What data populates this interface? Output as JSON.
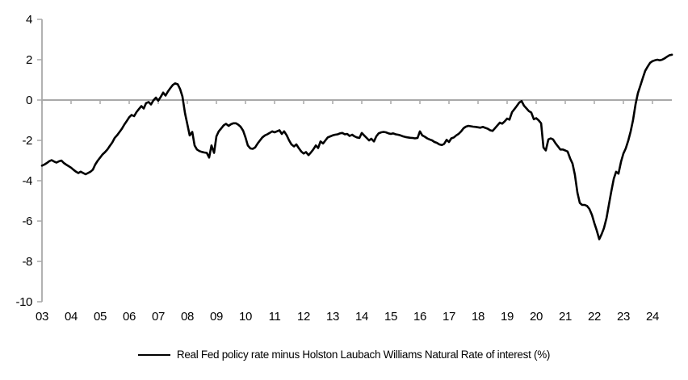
{
  "chart_data": {
    "type": "line",
    "title": "",
    "legend": "Real Fed policy rate minus Holston Laubach Williams Natural Rate of interest (%)",
    "xlabel": "",
    "ylabel": "",
    "grid": false,
    "legend_position": "bottom",
    "axis_color": "#a9a9a9",
    "line_color": "#000000",
    "ylim": [
      -10,
      4
    ],
    "y_ticks": [
      4,
      2,
      0,
      -2,
      -4,
      -6,
      -8,
      -10
    ],
    "x_tick_labels": [
      "03",
      "04",
      "05",
      "06",
      "07",
      "08",
      "09",
      "10",
      "11",
      "12",
      "13",
      "14",
      "15",
      "16",
      "17",
      "18",
      "19",
      "20",
      "21",
      "22",
      "23",
      "24"
    ],
    "xlim_years": [
      2003.0,
      2024.75
    ],
    "zero_line": true,
    "series": [
      {
        "name": "Real Fed policy rate minus Holston Laubach Williams Natural Rate of interest (%)",
        "color": "#000000",
        "points": [
          [
            2003.0,
            -3.25
          ],
          [
            2003.08,
            -3.2
          ],
          [
            2003.17,
            -3.12
          ],
          [
            2003.25,
            -3.03
          ],
          [
            2003.33,
            -2.98
          ],
          [
            2003.42,
            -3.05
          ],
          [
            2003.5,
            -3.1
          ],
          [
            2003.58,
            -3.04
          ],
          [
            2003.67,
            -3.0
          ],
          [
            2003.75,
            -3.12
          ],
          [
            2003.83,
            -3.2
          ],
          [
            2003.92,
            -3.28
          ],
          [
            2004.0,
            -3.35
          ],
          [
            2004.08,
            -3.45
          ],
          [
            2004.17,
            -3.55
          ],
          [
            2004.25,
            -3.62
          ],
          [
            2004.33,
            -3.55
          ],
          [
            2004.42,
            -3.62
          ],
          [
            2004.5,
            -3.68
          ],
          [
            2004.58,
            -3.62
          ],
          [
            2004.67,
            -3.55
          ],
          [
            2004.75,
            -3.45
          ],
          [
            2004.83,
            -3.2
          ],
          [
            2004.92,
            -3.0
          ],
          [
            2005.0,
            -2.85
          ],
          [
            2005.08,
            -2.7
          ],
          [
            2005.17,
            -2.58
          ],
          [
            2005.25,
            -2.45
          ],
          [
            2005.33,
            -2.28
          ],
          [
            2005.42,
            -2.1
          ],
          [
            2005.5,
            -1.88
          ],
          [
            2005.58,
            -1.75
          ],
          [
            2005.67,
            -1.58
          ],
          [
            2005.75,
            -1.42
          ],
          [
            2005.83,
            -1.22
          ],
          [
            2005.92,
            -1.03
          ],
          [
            2006.0,
            -0.85
          ],
          [
            2006.08,
            -0.74
          ],
          [
            2006.17,
            -0.8
          ],
          [
            2006.25,
            -0.6
          ],
          [
            2006.33,
            -0.45
          ],
          [
            2006.42,
            -0.3
          ],
          [
            2006.5,
            -0.42
          ],
          [
            2006.58,
            -0.15
          ],
          [
            2006.67,
            -0.1
          ],
          [
            2006.75,
            -0.22
          ],
          [
            2006.83,
            -0.02
          ],
          [
            2006.92,
            0.12
          ],
          [
            2007.0,
            -0.03
          ],
          [
            2007.08,
            0.15
          ],
          [
            2007.17,
            0.37
          ],
          [
            2007.25,
            0.22
          ],
          [
            2007.33,
            0.42
          ],
          [
            2007.42,
            0.6
          ],
          [
            2007.5,
            0.75
          ],
          [
            2007.58,
            0.83
          ],
          [
            2007.67,
            0.78
          ],
          [
            2007.75,
            0.55
          ],
          [
            2007.83,
            0.18
          ],
          [
            2007.92,
            -0.65
          ],
          [
            2008.0,
            -1.2
          ],
          [
            2008.08,
            -1.75
          ],
          [
            2008.17,
            -1.58
          ],
          [
            2008.25,
            -2.25
          ],
          [
            2008.33,
            -2.45
          ],
          [
            2008.42,
            -2.53
          ],
          [
            2008.5,
            -2.57
          ],
          [
            2008.58,
            -2.6
          ],
          [
            2008.67,
            -2.62
          ],
          [
            2008.75,
            -2.85
          ],
          [
            2008.83,
            -2.25
          ],
          [
            2008.92,
            -2.62
          ],
          [
            2009.0,
            -1.8
          ],
          [
            2009.08,
            -1.55
          ],
          [
            2009.17,
            -1.4
          ],
          [
            2009.25,
            -1.25
          ],
          [
            2009.33,
            -1.18
          ],
          [
            2009.42,
            -1.28
          ],
          [
            2009.5,
            -1.2
          ],
          [
            2009.58,
            -1.15
          ],
          [
            2009.67,
            -1.15
          ],
          [
            2009.75,
            -1.22
          ],
          [
            2009.83,
            -1.32
          ],
          [
            2009.92,
            -1.52
          ],
          [
            2010.0,
            -1.85
          ],
          [
            2010.08,
            -2.25
          ],
          [
            2010.17,
            -2.4
          ],
          [
            2010.25,
            -2.42
          ],
          [
            2010.33,
            -2.35
          ],
          [
            2010.42,
            -2.15
          ],
          [
            2010.5,
            -2.0
          ],
          [
            2010.58,
            -1.85
          ],
          [
            2010.67,
            -1.75
          ],
          [
            2010.75,
            -1.7
          ],
          [
            2010.83,
            -1.63
          ],
          [
            2010.92,
            -1.55
          ],
          [
            2011.0,
            -1.6
          ],
          [
            2011.08,
            -1.55
          ],
          [
            2011.17,
            -1.5
          ],
          [
            2011.25,
            -1.68
          ],
          [
            2011.33,
            -1.55
          ],
          [
            2011.42,
            -1.75
          ],
          [
            2011.5,
            -2.0
          ],
          [
            2011.58,
            -2.2
          ],
          [
            2011.67,
            -2.3
          ],
          [
            2011.75,
            -2.2
          ],
          [
            2011.83,
            -2.38
          ],
          [
            2011.92,
            -2.55
          ],
          [
            2012.0,
            -2.65
          ],
          [
            2012.08,
            -2.58
          ],
          [
            2012.17,
            -2.73
          ],
          [
            2012.25,
            -2.6
          ],
          [
            2012.33,
            -2.45
          ],
          [
            2012.42,
            -2.25
          ],
          [
            2012.5,
            -2.38
          ],
          [
            2012.58,
            -2.05
          ],
          [
            2012.67,
            -2.15
          ],
          [
            2012.75,
            -2.0
          ],
          [
            2012.83,
            -1.85
          ],
          [
            2012.92,
            -1.8
          ],
          [
            2013.0,
            -1.75
          ],
          [
            2013.08,
            -1.72
          ],
          [
            2013.17,
            -1.7
          ],
          [
            2013.25,
            -1.65
          ],
          [
            2013.33,
            -1.63
          ],
          [
            2013.42,
            -1.7
          ],
          [
            2013.5,
            -1.68
          ],
          [
            2013.58,
            -1.78
          ],
          [
            2013.67,
            -1.72
          ],
          [
            2013.75,
            -1.8
          ],
          [
            2013.83,
            -1.85
          ],
          [
            2013.92,
            -1.88
          ],
          [
            2014.0,
            -1.63
          ],
          [
            2014.08,
            -1.75
          ],
          [
            2014.17,
            -1.88
          ],
          [
            2014.25,
            -2.0
          ],
          [
            2014.33,
            -1.92
          ],
          [
            2014.42,
            -2.05
          ],
          [
            2014.5,
            -1.8
          ],
          [
            2014.58,
            -1.65
          ],
          [
            2014.67,
            -1.6
          ],
          [
            2014.75,
            -1.58
          ],
          [
            2014.83,
            -1.6
          ],
          [
            2014.92,
            -1.65
          ],
          [
            2015.0,
            -1.68
          ],
          [
            2015.08,
            -1.65
          ],
          [
            2015.17,
            -1.7
          ],
          [
            2015.25,
            -1.72
          ],
          [
            2015.33,
            -1.75
          ],
          [
            2015.42,
            -1.8
          ],
          [
            2015.5,
            -1.83
          ],
          [
            2015.58,
            -1.85
          ],
          [
            2015.67,
            -1.87
          ],
          [
            2015.75,
            -1.88
          ],
          [
            2015.83,
            -1.9
          ],
          [
            2015.92,
            -1.88
          ],
          [
            2016.0,
            -1.55
          ],
          [
            2016.08,
            -1.75
          ],
          [
            2016.17,
            -1.82
          ],
          [
            2016.25,
            -1.9
          ],
          [
            2016.33,
            -1.95
          ],
          [
            2016.42,
            -2.0
          ],
          [
            2016.5,
            -2.08
          ],
          [
            2016.58,
            -2.12
          ],
          [
            2016.67,
            -2.2
          ],
          [
            2016.75,
            -2.23
          ],
          [
            2016.83,
            -2.18
          ],
          [
            2016.92,
            -1.97
          ],
          [
            2017.0,
            -2.08
          ],
          [
            2017.08,
            -1.9
          ],
          [
            2017.17,
            -1.85
          ],
          [
            2017.25,
            -1.75
          ],
          [
            2017.33,
            -1.68
          ],
          [
            2017.42,
            -1.55
          ],
          [
            2017.5,
            -1.4
          ],
          [
            2017.58,
            -1.32
          ],
          [
            2017.67,
            -1.28
          ],
          [
            2017.75,
            -1.3
          ],
          [
            2017.83,
            -1.32
          ],
          [
            2017.92,
            -1.33
          ],
          [
            2018.0,
            -1.35
          ],
          [
            2018.08,
            -1.37
          ],
          [
            2018.17,
            -1.33
          ],
          [
            2018.25,
            -1.38
          ],
          [
            2018.33,
            -1.42
          ],
          [
            2018.42,
            -1.5
          ],
          [
            2018.5,
            -1.53
          ],
          [
            2018.58,
            -1.4
          ],
          [
            2018.67,
            -1.25
          ],
          [
            2018.75,
            -1.12
          ],
          [
            2018.83,
            -1.17
          ],
          [
            2018.92,
            -1.05
          ],
          [
            2019.0,
            -0.92
          ],
          [
            2019.08,
            -0.97
          ],
          [
            2019.17,
            -0.6
          ],
          [
            2019.25,
            -0.45
          ],
          [
            2019.33,
            -0.3
          ],
          [
            2019.42,
            -0.12
          ],
          [
            2019.5,
            -0.05
          ],
          [
            2019.58,
            -0.28
          ],
          [
            2019.67,
            -0.42
          ],
          [
            2019.75,
            -0.55
          ],
          [
            2019.83,
            -0.62
          ],
          [
            2019.92,
            -0.95
          ],
          [
            2020.0,
            -0.9
          ],
          [
            2020.08,
            -1.0
          ],
          [
            2020.17,
            -1.15
          ],
          [
            2020.25,
            -2.35
          ],
          [
            2020.33,
            -2.5
          ],
          [
            2020.42,
            -1.95
          ],
          [
            2020.5,
            -1.9
          ],
          [
            2020.58,
            -1.95
          ],
          [
            2020.67,
            -2.15
          ],
          [
            2020.75,
            -2.3
          ],
          [
            2020.83,
            -2.45
          ],
          [
            2020.92,
            -2.45
          ],
          [
            2021.0,
            -2.5
          ],
          [
            2021.08,
            -2.55
          ],
          [
            2021.17,
            -2.9
          ],
          [
            2021.25,
            -3.15
          ],
          [
            2021.33,
            -3.7
          ],
          [
            2021.42,
            -4.6
          ],
          [
            2021.5,
            -5.1
          ],
          [
            2021.58,
            -5.2
          ],
          [
            2021.67,
            -5.2
          ],
          [
            2021.75,
            -5.25
          ],
          [
            2021.83,
            -5.4
          ],
          [
            2021.92,
            -5.7
          ],
          [
            2022.0,
            -6.1
          ],
          [
            2022.08,
            -6.45
          ],
          [
            2022.17,
            -6.9
          ],
          [
            2022.25,
            -6.65
          ],
          [
            2022.33,
            -6.35
          ],
          [
            2022.42,
            -5.85
          ],
          [
            2022.5,
            -5.2
          ],
          [
            2022.58,
            -4.55
          ],
          [
            2022.67,
            -3.9
          ],
          [
            2022.75,
            -3.55
          ],
          [
            2022.83,
            -3.65
          ],
          [
            2022.92,
            -3.05
          ],
          [
            2023.0,
            -2.65
          ],
          [
            2023.08,
            -2.4
          ],
          [
            2023.17,
            -2.0
          ],
          [
            2023.25,
            -1.55
          ],
          [
            2023.33,
            -1.0
          ],
          [
            2023.42,
            -0.2
          ],
          [
            2023.5,
            0.35
          ],
          [
            2023.58,
            0.7
          ],
          [
            2023.67,
            1.1
          ],
          [
            2023.75,
            1.45
          ],
          [
            2023.83,
            1.65
          ],
          [
            2023.92,
            1.85
          ],
          [
            2024.0,
            1.93
          ],
          [
            2024.08,
            1.97
          ],
          [
            2024.17,
            2.0
          ],
          [
            2024.25,
            1.97
          ],
          [
            2024.33,
            2.0
          ],
          [
            2024.42,
            2.07
          ],
          [
            2024.5,
            2.15
          ],
          [
            2024.58,
            2.22
          ],
          [
            2024.67,
            2.25
          ]
        ]
      }
    ]
  }
}
